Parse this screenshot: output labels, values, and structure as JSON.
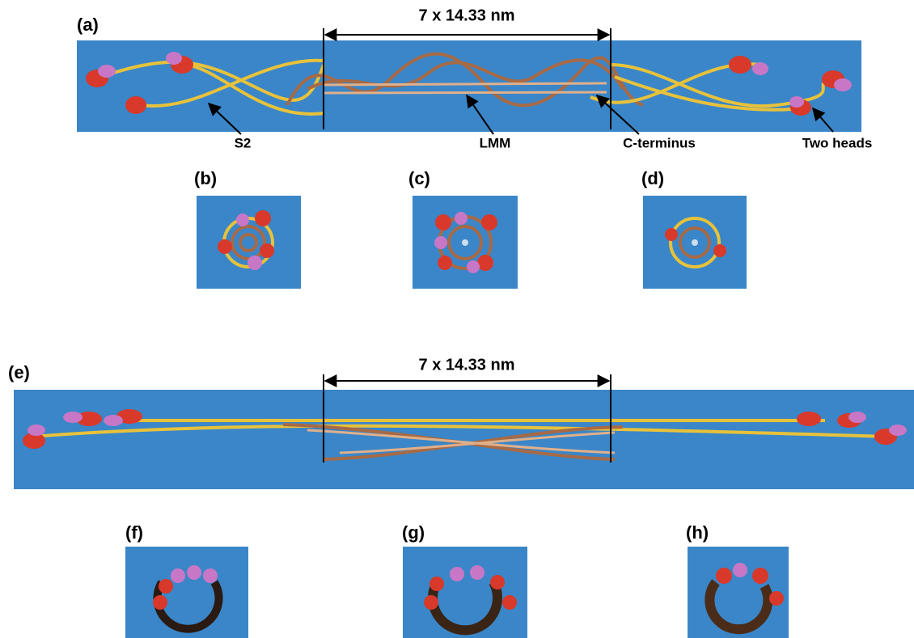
{
  "panel_labels": [
    "(a)",
    "(b)",
    "(c)",
    "(d)",
    "(e)",
    "(f)",
    "(g)",
    "(h)"
  ],
  "top": {
    "scale": "7 x 14.33 nm",
    "annotations": [
      "S2",
      "LMM",
      "C-terminus",
      "Two heads"
    ]
  },
  "bottom": {
    "scale": "7 x 14.33 nm"
  }
}
